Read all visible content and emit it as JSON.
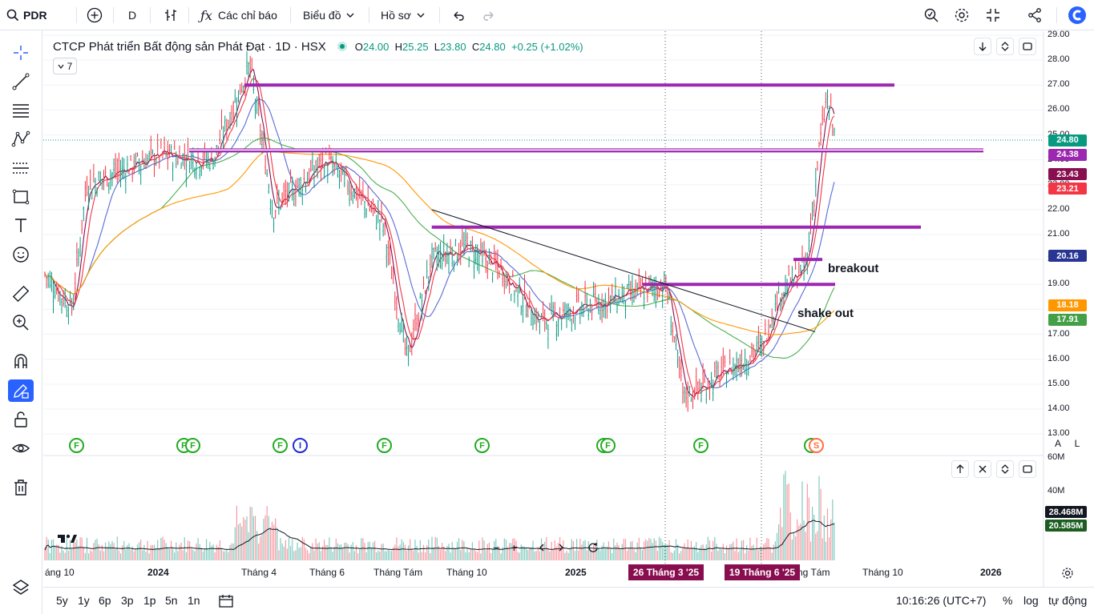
{
  "topbar": {
    "symbol": "PDR",
    "interval": "D",
    "indicators_label": "Các chỉ báo",
    "chart_type_label": "Biểu đồ",
    "profile_label": "Hồ sơ"
  },
  "legend": {
    "title": "CTCP Phát triển Bất động sản Phát Đạt · 1D · HSX",
    "open_label": "O",
    "open": "24.00",
    "high_label": "H",
    "high": "25.25",
    "low_label": "L",
    "low": "23.80",
    "close_label": "C",
    "close": "24.80",
    "change": "+0.25 (+1.02%)",
    "indicator_count": "7"
  },
  "colors": {
    "up": "#089981",
    "down": "#f23645",
    "level": "#9c27b0",
    "ma_red": "#e91e63",
    "ma_blue": "#5b6bd6",
    "ma_green": "#4caf50",
    "ma_orange": "#ff9800",
    "highlight": "#880e4f"
  },
  "price_axis": {
    "ticks": [
      "29.00",
      "28.00",
      "27.00",
      "26.00",
      "25.00",
      "24.00",
      "23.00",
      "22.00",
      "21.00",
      "20.00",
      "19.00",
      "18.00",
      "17.00",
      "16.00",
      "15.00",
      "14.00",
      "13.00"
    ],
    "labels": [
      {
        "text": "24.80",
        "color": "#089981"
      },
      {
        "text": "24.38",
        "color": "#9c27b0"
      },
      {
        "text": "23.43",
        "color": "#880e4f"
      },
      {
        "text": "23.21",
        "color": "#f23645"
      },
      {
        "text": "20.16",
        "color": "#283593"
      },
      {
        "text": "18.18",
        "color": "#ff9800"
      },
      {
        "text": "17.91",
        "color": "#43a047"
      }
    ],
    "mode_a": "A",
    "mode_l": "L"
  },
  "volume_axis": {
    "ticks": [
      "60M",
      "40M"
    ],
    "labels": [
      {
        "text": "28.468M",
        "color": "#131722"
      },
      {
        "text": "20.585M",
        "color": "#1b5e20"
      }
    ]
  },
  "time_axis": {
    "labels": [
      "áng 10",
      "2024",
      "Tháng 4",
      "Tháng 6",
      "Tháng Tám",
      "Tháng 10",
      "2025",
      "ng Tám",
      "Tháng 10",
      "2026"
    ],
    "highlight_1": "26 Tháng 3 '25",
    "highlight_2": "19 Tháng 6 '25"
  },
  "annotations": {
    "breakout": "breakout",
    "shakeout": "shake out"
  },
  "events": [
    "F",
    "F",
    "F",
    "F",
    "I",
    "F",
    "F",
    "F",
    "F",
    "F",
    "F",
    "S"
  ],
  "bottombar": {
    "ranges": [
      "5y",
      "1y",
      "6p",
      "3p",
      "1p",
      "5n",
      "1n"
    ],
    "clock": "10:16:26 (UTC+7)",
    "percent": "%",
    "log": "log",
    "auto": "tự động"
  },
  "chart_data": {
    "type": "candlestick",
    "title": "CTCP Phát triển Bất động sản Phát Đạt · 1D · HSX",
    "y_range": [
      13.0,
      29.0
    ],
    "anchors": [
      {
        "x": "2023-09",
        "y": 19.5
      },
      {
        "x": "2023-10-20",
        "y": 18.0
      },
      {
        "x": "2023-11",
        "y": 23.0
      },
      {
        "x": "2024-01",
        "y": 24.2
      },
      {
        "x": "2024-02-20",
        "y": 24.0
      },
      {
        "x": "2024-03-25",
        "y": 27.8
      },
      {
        "x": "2024-04-15",
        "y": 22.0
      },
      {
        "x": "2024-06",
        "y": 24.0
      },
      {
        "x": "2024-07-20",
        "y": 21.5
      },
      {
        "x": "2024-08-10",
        "y": 16.0
      },
      {
        "x": "2024-09",
        "y": 20.0
      },
      {
        "x": "2024-10",
        "y": 20.5
      },
      {
        "x": "2024-11",
        "y": 19.5
      },
      {
        "x": "2024-12",
        "y": 17.5
      },
      {
        "x": "2025-01",
        "y": 18.0
      },
      {
        "x": "2025-03-26",
        "y": 19.0
      },
      {
        "x": "2025-04-10",
        "y": 14.5
      },
      {
        "x": "2025-05",
        "y": 15.0
      },
      {
        "x": "2025-06-19",
        "y": 16.5
      },
      {
        "x": "2025-07",
        "y": 18.5
      },
      {
        "x": "2025-07-25",
        "y": 19.8
      },
      {
        "x": "2025-08-05",
        "y": 24.5
      },
      {
        "x": "2025-08-12",
        "y": 26.5
      },
      {
        "x": "2025-08-20",
        "y": 24.8
      }
    ],
    "last": {
      "open": 24.0,
      "high": 25.25,
      "low": 23.8,
      "close": 24.8
    },
    "horizontal_levels": [
      27.0,
      24.38,
      21.3,
      19.0,
      20.0
    ],
    "trendline": {
      "from": {
        "x": "2024-09",
        "y": 22.0
      },
      "to": {
        "x": "2025-08",
        "y": 17.1
      }
    },
    "moving_averages": [
      {
        "value": 23.43,
        "color": "#880e4f"
      },
      {
        "value": 23.21,
        "color": "#f23645"
      },
      {
        "value": 20.16,
        "color": "#5b6bd6"
      },
      {
        "value": 18.18,
        "color": "#ff9800"
      },
      {
        "value": 17.91,
        "color": "#4caf50"
      }
    ],
    "volume": {
      "y_range": [
        0,
        60
      ],
      "unit": "M",
      "ma_1": 28.468,
      "ma_2": 20.585
    }
  }
}
